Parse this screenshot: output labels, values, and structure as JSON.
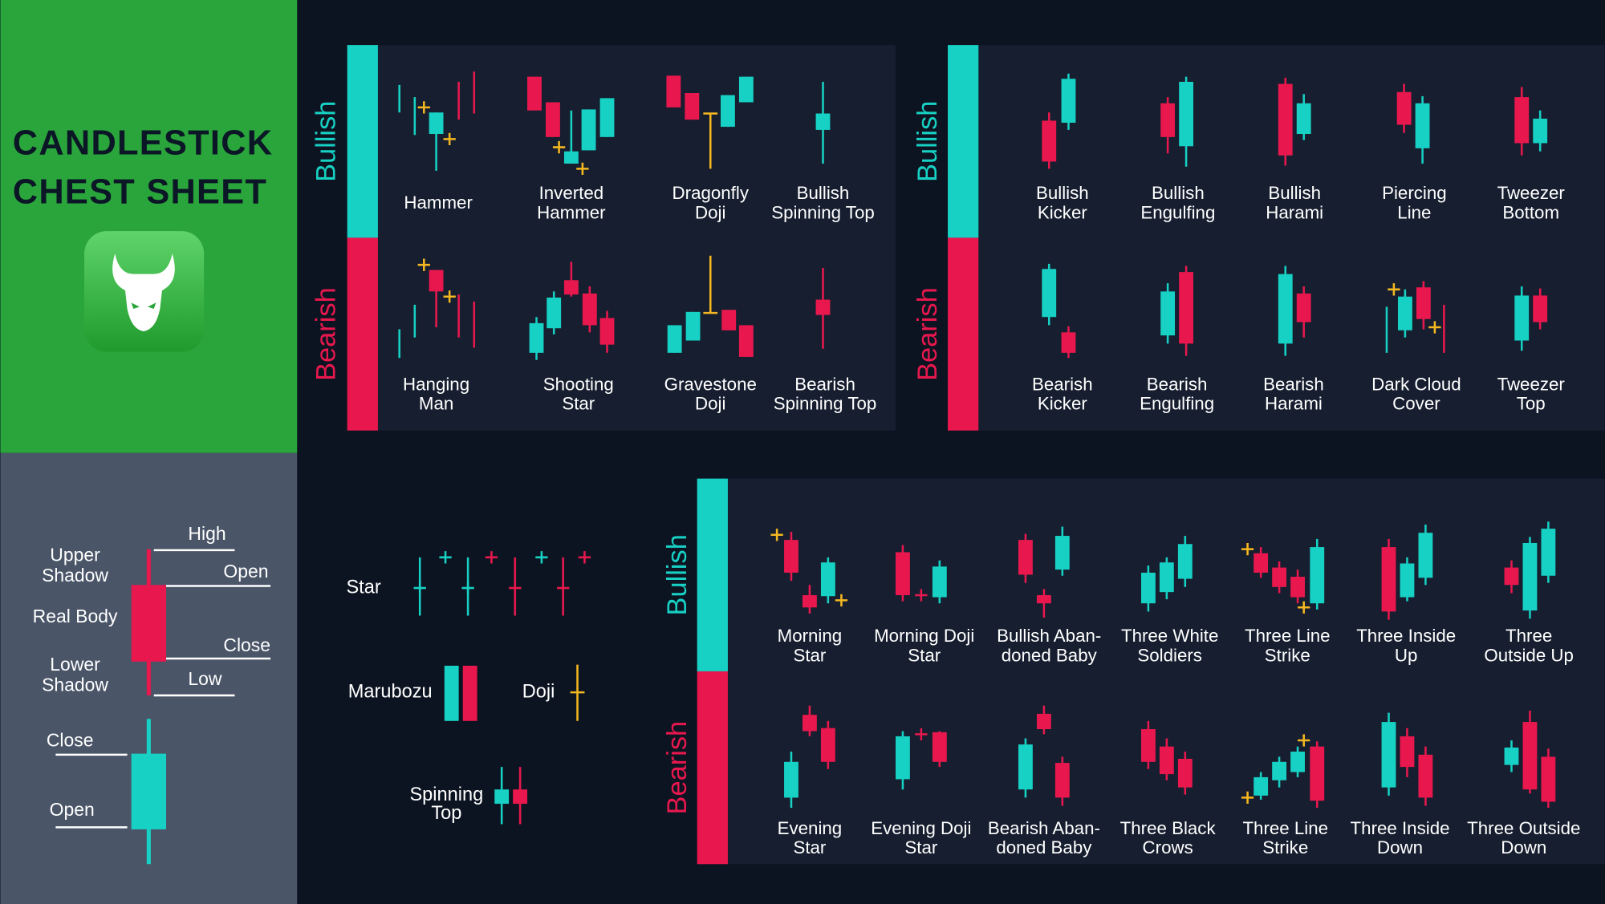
{
  "header": {
    "title": [
      "CANDLESTICK",
      "CHEST SHEET"
    ]
  },
  "anatomy": {
    "upper_shadow": [
      "Upper",
      "Shadow"
    ],
    "high": "High",
    "open": "Open",
    "real_body": "Real Body",
    "close": "Close",
    "lower_shadow": [
      "Lower",
      "Shadow"
    ],
    "low": "Low",
    "bullish_close": "Close",
    "bullish_open": "Open"
  },
  "basics": {
    "star": "Star",
    "marubozu": "Marubozu",
    "doji": "Doji",
    "spinning_top": [
      "Spinning",
      "Top"
    ]
  },
  "panels": [
    {
      "bullish_label": "Bullish",
      "bearish_label": "Bearish",
      "bullish": [
        [
          "Hammer"
        ],
        [
          "Inverted",
          "Hammer"
        ],
        [
          "Dragonfly",
          "Doji"
        ],
        [
          "Bullish",
          "Spinning Top"
        ]
      ],
      "bearish": [
        [
          "Hanging",
          "Man"
        ],
        [
          "Shooting",
          "Star"
        ],
        [
          "Gravestone",
          "Doji"
        ],
        [
          "Bearish",
          "Spinning Top"
        ]
      ]
    },
    {
      "bullish_label": "Bullish",
      "bearish_label": "Bearish",
      "bullish": [
        [
          "Bullish",
          "Kicker"
        ],
        [
          "Bullish",
          "Engulfing"
        ],
        [
          "Bullish",
          "Harami"
        ],
        [
          "Piercing",
          "Line"
        ],
        [
          "Tweezer",
          "Bottom"
        ]
      ],
      "bearish": [
        [
          "Bearish",
          "Kicker"
        ],
        [
          "Bearish",
          "Engulfing"
        ],
        [
          "Bearish",
          "Harami"
        ],
        [
          "Dark Cloud",
          "Cover"
        ],
        [
          "Tweezer",
          "Top"
        ]
      ]
    },
    {
      "bullish_label": "Bullish",
      "bearish_label": "Bearish",
      "bullish": [
        [
          "Morning",
          "Star"
        ],
        [
          "Morning Doji",
          "Star"
        ],
        [
          "Bullish Aban-",
          "doned Baby"
        ],
        [
          "Three White",
          "Soldiers"
        ],
        [
          "Three Line",
          "Strike"
        ],
        [
          "Three Inside",
          "Up"
        ],
        [
          "Three",
          "Outside Up"
        ]
      ],
      "bearish": [
        [
          "Evening",
          "Star"
        ],
        [
          "Evening Doji",
          "Star"
        ],
        [
          "Bearish Aban-",
          "doned Baby"
        ],
        [
          "Three Black",
          "Crows"
        ],
        [
          "Three Line",
          "Strike"
        ],
        [
          "Three Inside",
          "Down"
        ],
        [
          "Three Outside",
          "Down"
        ]
      ]
    }
  ]
}
